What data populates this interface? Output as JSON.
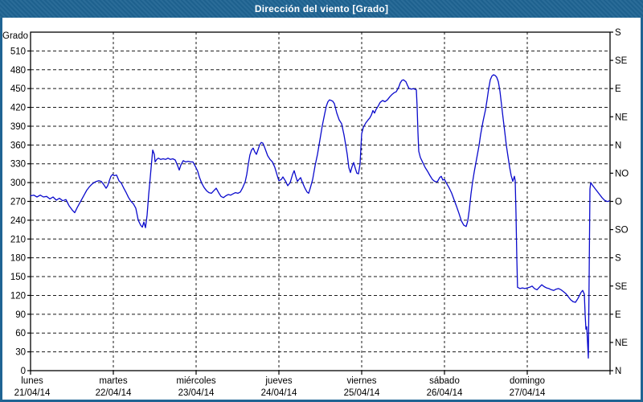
{
  "title": "Dirección del viento [Grado]",
  "colors": {
    "frame": "#1f6493",
    "panel": "#ffffff",
    "line": "#0a0acc",
    "grid": "#1a1a1a",
    "axis": "#000000",
    "text": "#000000",
    "title_text": "#ffffff"
  },
  "chart_data": {
    "type": "line",
    "title": "Dirección del viento [Grado]",
    "ylabel": "Grado",
    "ylim": [
      0,
      540
    ],
    "grid": "dashed",
    "legend_position": "none",
    "y_left_ticks": [
      0,
      30,
      60,
      90,
      120,
      150,
      180,
      210,
      240,
      270,
      300,
      330,
      360,
      390,
      420,
      450,
      480,
      510
    ],
    "y_right_ticks": [
      {
        "deg": 0,
        "label": "N"
      },
      {
        "deg": 45,
        "label": "NE"
      },
      {
        "deg": 90,
        "label": "E"
      },
      {
        "deg": 135,
        "label": "SE"
      },
      {
        "deg": 180,
        "label": "S"
      },
      {
        "deg": 225,
        "label": "SO"
      },
      {
        "deg": 270,
        "label": "O"
      },
      {
        "deg": 315,
        "label": "NO"
      },
      {
        "deg": 360,
        "label": "N"
      },
      {
        "deg": 405,
        "label": "NE"
      },
      {
        "deg": 450,
        "label": "E"
      },
      {
        "deg": 495,
        "label": "SE"
      },
      {
        "deg": 540,
        "label": "S"
      }
    ],
    "x_days": [
      {
        "name": "lunes",
        "date": "21/04/14"
      },
      {
        "name": "martes",
        "date": "22/04/14"
      },
      {
        "name": "miércoles",
        "date": "23/04/14"
      },
      {
        "name": "jueves",
        "date": "24/04/14"
      },
      {
        "name": "viernes",
        "date": "25/04/14"
      },
      {
        "name": "sábado",
        "date": "26/04/14"
      },
      {
        "name": "domingo",
        "date": "27/04/14"
      }
    ],
    "series": [
      {
        "name": "Dirección del viento",
        "unit": "Grado",
        "x_unit": "days since 21/04/14 00:00",
        "points": [
          [
            0.0,
            279
          ],
          [
            0.039,
            280
          ],
          [
            0.078,
            277
          ],
          [
            0.117,
            280
          ],
          [
            0.155,
            277
          ],
          [
            0.194,
            278
          ],
          [
            0.233,
            274
          ],
          [
            0.272,
            277
          ],
          [
            0.311,
            272
          ],
          [
            0.35,
            275
          ],
          [
            0.388,
            271
          ],
          [
            0.427,
            273
          ],
          [
            0.466,
            263
          ],
          [
            0.505,
            256
          ],
          [
            0.534,
            252
          ],
          [
            0.563,
            260
          ],
          [
            0.592,
            267
          ],
          [
            0.621,
            274
          ],
          [
            0.65,
            281
          ],
          [
            0.68,
            288
          ],
          [
            0.709,
            293
          ],
          [
            0.738,
            297
          ],
          [
            0.767,
            300
          ],
          [
            0.796,
            302
          ],
          [
            0.825,
            303
          ],
          [
            0.854,
            302
          ],
          [
            0.883,
            297
          ],
          [
            0.913,
            291
          ],
          [
            0.932,
            295
          ],
          [
            0.951,
            303
          ],
          [
            0.971,
            310
          ],
          [
            0.99,
            313
          ],
          [
            1.01,
            311
          ],
          [
            1.039,
            312
          ],
          [
            1.068,
            303
          ],
          [
            1.097,
            299
          ],
          [
            1.126,
            291
          ],
          [
            1.155,
            284
          ],
          [
            1.184,
            276
          ],
          [
            1.214,
            270
          ],
          [
            1.243,
            266
          ],
          [
            1.272,
            259
          ],
          [
            1.301,
            240
          ],
          [
            1.33,
            232
          ],
          [
            1.35,
            229
          ],
          [
            1.369,
            237
          ],
          [
            1.388,
            228
          ],
          [
            1.408,
            248
          ],
          [
            1.427,
            281
          ],
          [
            1.447,
            309
          ],
          [
            1.466,
            338
          ],
          [
            1.476,
            352
          ],
          [
            1.495,
            345
          ],
          [
            1.505,
            333
          ],
          [
            1.524,
            337
          ],
          [
            1.544,
            339
          ],
          [
            1.573,
            337
          ],
          [
            1.602,
            338
          ],
          [
            1.631,
            337
          ],
          [
            1.66,
            339
          ],
          [
            1.689,
            337
          ],
          [
            1.718,
            338
          ],
          [
            1.748,
            336
          ],
          [
            1.777,
            327
          ],
          [
            1.796,
            320
          ],
          [
            1.816,
            328
          ],
          [
            1.845,
            335
          ],
          [
            1.874,
            333
          ],
          [
            1.903,
            334
          ],
          [
            1.932,
            333
          ],
          [
            1.961,
            333
          ],
          [
            1.99,
            326
          ],
          [
            2.019,
            318
          ],
          [
            2.039,
            309
          ],
          [
            2.068,
            299
          ],
          [
            2.097,
            292
          ],
          [
            2.126,
            287
          ],
          [
            2.155,
            284
          ],
          [
            2.184,
            283
          ],
          [
            2.214,
            287
          ],
          [
            2.243,
            291
          ],
          [
            2.272,
            284
          ],
          [
            2.301,
            278
          ],
          [
            2.33,
            276
          ],
          [
            2.359,
            279
          ],
          [
            2.388,
            281
          ],
          [
            2.417,
            280
          ],
          [
            2.447,
            282
          ],
          [
            2.476,
            284
          ],
          [
            2.505,
            283
          ],
          [
            2.534,
            285
          ],
          [
            2.563,
            292
          ],
          [
            2.592,
            301
          ],
          [
            2.612,
            313
          ],
          [
            2.631,
            330
          ],
          [
            2.65,
            344
          ],
          [
            2.67,
            352
          ],
          [
            2.689,
            355
          ],
          [
            2.709,
            349
          ],
          [
            2.728,
            345
          ],
          [
            2.747,
            352
          ],
          [
            2.767,
            360
          ],
          [
            2.786,
            364
          ],
          [
            2.806,
            363
          ],
          [
            2.825,
            357
          ],
          [
            2.845,
            350
          ],
          [
            2.864,
            343
          ],
          [
            2.893,
            337
          ],
          [
            2.922,
            333
          ],
          [
            2.951,
            324
          ],
          [
            2.981,
            311
          ],
          [
            3.0,
            303
          ],
          [
            3.029,
            305
          ],
          [
            3.049,
            309
          ],
          [
            3.078,
            303
          ],
          [
            3.107,
            295
          ],
          [
            3.136,
            300
          ],
          [
            3.165,
            313
          ],
          [
            3.184,
            319
          ],
          [
            3.204,
            310
          ],
          [
            3.223,
            302
          ],
          [
            3.243,
            305
          ],
          [
            3.262,
            308
          ],
          [
            3.282,
            301
          ],
          [
            3.311,
            292
          ],
          [
            3.34,
            285
          ],
          [
            3.359,
            283
          ],
          [
            3.379,
            291
          ],
          [
            3.408,
            305
          ],
          [
            3.437,
            327
          ],
          [
            3.466,
            345
          ],
          [
            3.495,
            368
          ],
          [
            3.524,
            391
          ],
          [
            3.553,
            410
          ],
          [
            3.573,
            422
          ],
          [
            3.592,
            429
          ],
          [
            3.612,
            432
          ],
          [
            3.631,
            431
          ],
          [
            3.65,
            430
          ],
          [
            3.67,
            426
          ],
          [
            3.699,
            411
          ],
          [
            3.728,
            400
          ],
          [
            3.757,
            394
          ],
          [
            3.786,
            376
          ],
          [
            3.806,
            361
          ],
          [
            3.825,
            345
          ],
          [
            3.845,
            324
          ],
          [
            3.864,
            316
          ],
          [
            3.883,
            325
          ],
          [
            3.903,
            332
          ],
          [
            3.922,
            323
          ],
          [
            3.942,
            315
          ],
          [
            3.961,
            314
          ],
          [
            3.981,
            330
          ],
          [
            3.99,
            355
          ],
          [
            4.0,
            378
          ],
          [
            4.019,
            388
          ],
          [
            4.049,
            395
          ],
          [
            4.078,
            400
          ],
          [
            4.097,
            403
          ],
          [
            4.117,
            408
          ],
          [
            4.136,
            415
          ],
          [
            4.155,
            411
          ],
          [
            4.175,
            417
          ],
          [
            4.194,
            421
          ],
          [
            4.223,
            428
          ],
          [
            4.252,
            431
          ],
          [
            4.282,
            429
          ],
          [
            4.311,
            432
          ],
          [
            4.34,
            437
          ],
          [
            4.369,
            441
          ],
          [
            4.388,
            443
          ],
          [
            4.417,
            445
          ],
          [
            4.447,
            452
          ],
          [
            4.466,
            459
          ],
          [
            4.485,
            463
          ],
          [
            4.505,
            464
          ],
          [
            4.534,
            461
          ],
          [
            4.553,
            455
          ],
          [
            4.573,
            450
          ],
          [
            4.602,
            449
          ],
          [
            4.621,
            450
          ],
          [
            4.641,
            449
          ],
          [
            4.66,
            448
          ],
          [
            4.67,
            420
          ],
          [
            4.68,
            380
          ],
          [
            4.689,
            350
          ],
          [
            4.709,
            340
          ],
          [
            4.738,
            332
          ],
          [
            4.767,
            324
          ],
          [
            4.796,
            318
          ],
          [
            4.825,
            311
          ],
          [
            4.854,
            305
          ],
          [
            4.883,
            302
          ],
          [
            4.913,
            301
          ],
          [
            4.942,
            308
          ],
          [
            4.961,
            310
          ],
          [
            4.981,
            304
          ],
          [
            5.0,
            305
          ],
          [
            5.029,
            298
          ],
          [
            5.058,
            291
          ],
          [
            5.087,
            283
          ],
          [
            5.117,
            272
          ],
          [
            5.146,
            262
          ],
          [
            5.175,
            251
          ],
          [
            5.204,
            239
          ],
          [
            5.233,
            232
          ],
          [
            5.262,
            230
          ],
          [
            5.282,
            239
          ],
          [
            5.301,
            258
          ],
          [
            5.32,
            282
          ],
          [
            5.34,
            301
          ],
          [
            5.359,
            317
          ],
          [
            5.379,
            331
          ],
          [
            5.398,
            345
          ],
          [
            5.417,
            359
          ],
          [
            5.437,
            377
          ],
          [
            5.466,
            398
          ],
          [
            5.495,
            416
          ],
          [
            5.515,
            432
          ],
          [
            5.534,
            450
          ],
          [
            5.553,
            464
          ],
          [
            5.573,
            470
          ],
          [
            5.592,
            472
          ],
          [
            5.612,
            471
          ],
          [
            5.631,
            468
          ],
          [
            5.65,
            461
          ],
          [
            5.67,
            446
          ],
          [
            5.689,
            424
          ],
          [
            5.709,
            402
          ],
          [
            5.728,
            381
          ],
          [
            5.747,
            360
          ],
          [
            5.767,
            342
          ],
          [
            5.786,
            325
          ],
          [
            5.806,
            311
          ],
          [
            5.825,
            302
          ],
          [
            5.845,
            310
          ],
          [
            5.854,
            303
          ],
          [
            5.864,
            250
          ],
          [
            5.874,
            180
          ],
          [
            5.883,
            133
          ],
          [
            5.913,
            131
          ],
          [
            5.942,
            132
          ],
          [
            5.971,
            131
          ],
          [
            6.0,
            132
          ],
          [
            6.029,
            133
          ],
          [
            6.058,
            135
          ],
          [
            6.087,
            131
          ],
          [
            6.117,
            129
          ],
          [
            6.146,
            133
          ],
          [
            6.175,
            137
          ],
          [
            6.204,
            134
          ],
          [
            6.233,
            132
          ],
          [
            6.262,
            131
          ],
          [
            6.291,
            129
          ],
          [
            6.32,
            128
          ],
          [
            6.35,
            130
          ],
          [
            6.379,
            131
          ],
          [
            6.408,
            129
          ],
          [
            6.437,
            126
          ],
          [
            6.466,
            123
          ],
          [
            6.495,
            118
          ],
          [
            6.524,
            113
          ],
          [
            6.553,
            110
          ],
          [
            6.583,
            109
          ],
          [
            6.612,
            115
          ],
          [
            6.631,
            120
          ],
          [
            6.65,
            125
          ],
          [
            6.67,
            128
          ],
          [
            6.689,
            122
          ],
          [
            6.699,
            90
          ],
          [
            6.709,
            66
          ],
          [
            6.718,
            70
          ],
          [
            6.728,
            45
          ],
          [
            6.738,
            20
          ],
          [
            6.748,
            150
          ],
          [
            6.757,
            290
          ],
          [
            6.767,
            300
          ],
          [
            6.786,
            296
          ],
          [
            6.816,
            291
          ],
          [
            6.845,
            286
          ],
          [
            6.874,
            281
          ],
          [
            6.903,
            276
          ],
          [
            6.932,
            272
          ],
          [
            6.961,
            270
          ],
          [
            6.981,
            270
          ],
          [
            6.99,
            271
          ]
        ]
      }
    ]
  }
}
